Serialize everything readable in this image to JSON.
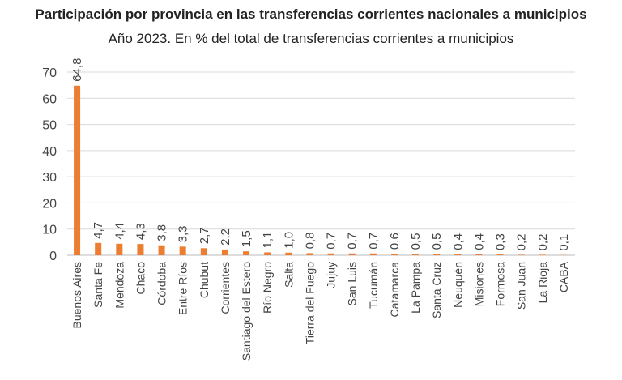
{
  "chart_data": {
    "type": "bar",
    "title": "Participación por provincia en las transferencias corrientes nacionales a municipios",
    "subtitle": "Año 2023. En % del total de transferencias corrientes a municipios",
    "xlabel": "",
    "ylabel": "",
    "ylim": [
      0,
      70
    ],
    "yticks": [
      0,
      10,
      20,
      30,
      40,
      50,
      60,
      70
    ],
    "grid": true,
    "color": "#ED7D31",
    "categories": [
      "Buenos Aires",
      "Santa Fe",
      "Mendoza",
      "Chaco",
      "Córdoba",
      "Entre Ríos",
      "Chubut",
      "Corrientes",
      "Santiago del Estero",
      "Río Negro",
      "Salta",
      "Tierra del Fuego",
      "Jujuy",
      "San Luis",
      "Tucumán",
      "Catamarca",
      "La Pampa",
      "Santa Cruz",
      "Neuquén",
      "Misiones",
      "Formosa",
      "San Juan",
      "La Rioja",
      "CABA"
    ],
    "values": [
      64.8,
      4.7,
      4.4,
      4.3,
      3.8,
      3.3,
      2.7,
      2.2,
      1.5,
      1.1,
      1.0,
      0.8,
      0.7,
      0.7,
      0.7,
      0.6,
      0.5,
      0.5,
      0.4,
      0.4,
      0.3,
      0.2,
      0.2,
      0.1
    ],
    "value_labels": [
      "64,8",
      "4,7",
      "4,4",
      "4,3",
      "3,8",
      "3,3",
      "2,7",
      "2,2",
      "1,5",
      "1,1",
      "1,0",
      "0,8",
      "0,7",
      "0,7",
      "0,7",
      "0,6",
      "0,5",
      "0,5",
      "0,4",
      "0,4",
      "0,3",
      "0,2",
      "0,2",
      "0,1"
    ]
  }
}
